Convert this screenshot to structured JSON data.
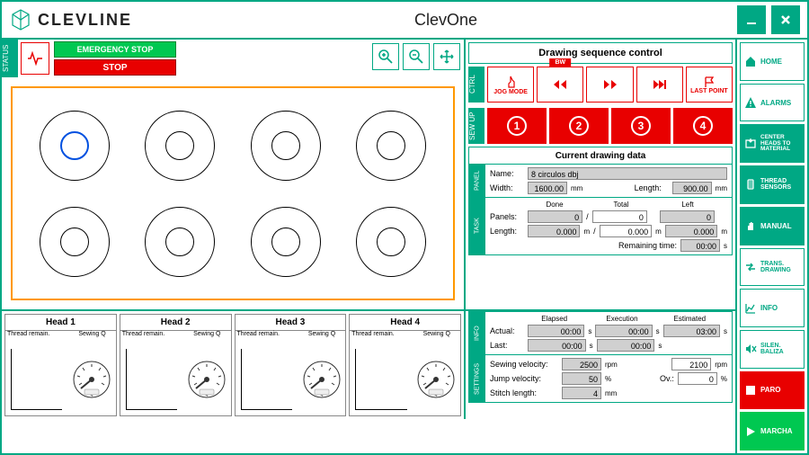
{
  "brand": "CLEVLINE",
  "title": "ClevOne",
  "status": {
    "tab": "STATUS",
    "emergency_stop": "EMERGENCY STOP",
    "stop": "STOP"
  },
  "canvas": {
    "rings": 8,
    "active_index": 0,
    "frame_color": "#ff9800"
  },
  "sequence": {
    "header": "Drawing sequence control",
    "ctrl_tab": "CTRL",
    "sewup_tab": "SEW UP",
    "jog_mode": "JOG MODE",
    "bw": "BW",
    "last_point": "LAST POINT",
    "heads": [
      "1",
      "2",
      "3",
      "4"
    ]
  },
  "drawing_data": {
    "header": "Current drawing data",
    "panel": {
      "tab": "PANEL",
      "name_label": "Name:",
      "name": "8 circulos dbj",
      "width_label": "Width:",
      "width": "1600.00",
      "width_unit": "mm",
      "length_label": "Length:",
      "length": "900.00",
      "length_unit": "mm"
    },
    "task": {
      "tab": "TASK",
      "done_label": "Done",
      "total_label": "Total",
      "left_label": "Left",
      "panels_label": "Panels:",
      "panels_done": "0",
      "panels_total": "0",
      "panels_left": "0",
      "length_label": "Length:",
      "length_done": "0.000",
      "length_total": "0.000",
      "length_left": "0.000",
      "length_unit": "m",
      "remaining_label": "Remaining time:",
      "remaining": "00:00",
      "remaining_unit": "s"
    },
    "info": {
      "tab": "INFO",
      "elapsed_label": "Elapsed",
      "execution_label": "Execution",
      "estimated_label": "Estimated",
      "actual_label": "Actual:",
      "actual_elapsed": "00:00",
      "actual_execution": "00:00",
      "actual_estimated": "03:00",
      "last_label": "Last:",
      "last_elapsed": "00:00",
      "last_execution": "00:00",
      "unit": "s"
    },
    "settings": {
      "tab": "SETTINGS",
      "sewing_label": "Sewing velocity:",
      "sewing": "2500",
      "sewing_unit": "rpm",
      "sewing2": "2100",
      "sewing2_unit": "rpm",
      "jump_label": "Jump velocity:",
      "jump": "50",
      "jump_unit": "%",
      "ov_label": "Ov.:",
      "ov": "0",
      "ov_unit": "%",
      "stitch_label": "Stitch length:",
      "stitch": "4",
      "stitch_unit": "mm"
    }
  },
  "heads": {
    "titles": [
      "Head 1",
      "Head 2",
      "Head 3",
      "Head 4"
    ],
    "thread_remain": "Thread remain.",
    "sewing_q": "Sewing Q"
  },
  "menu": {
    "home": "HOME",
    "alarms": "ALARMS",
    "center": "CENTER HEADS TO MATERIAL",
    "thread_sensors": "THREAD SENSORS",
    "manual": "MANUAL",
    "trans": "TRANS. DRAWING",
    "info": "INFO",
    "silen": "SILEN. BALIZA",
    "paro": "PARO",
    "marcha": "MARCHA"
  },
  "colors": {
    "primary": "#00a884",
    "red": "#e80000",
    "green": "#00c851",
    "orange": "#ff9800"
  }
}
